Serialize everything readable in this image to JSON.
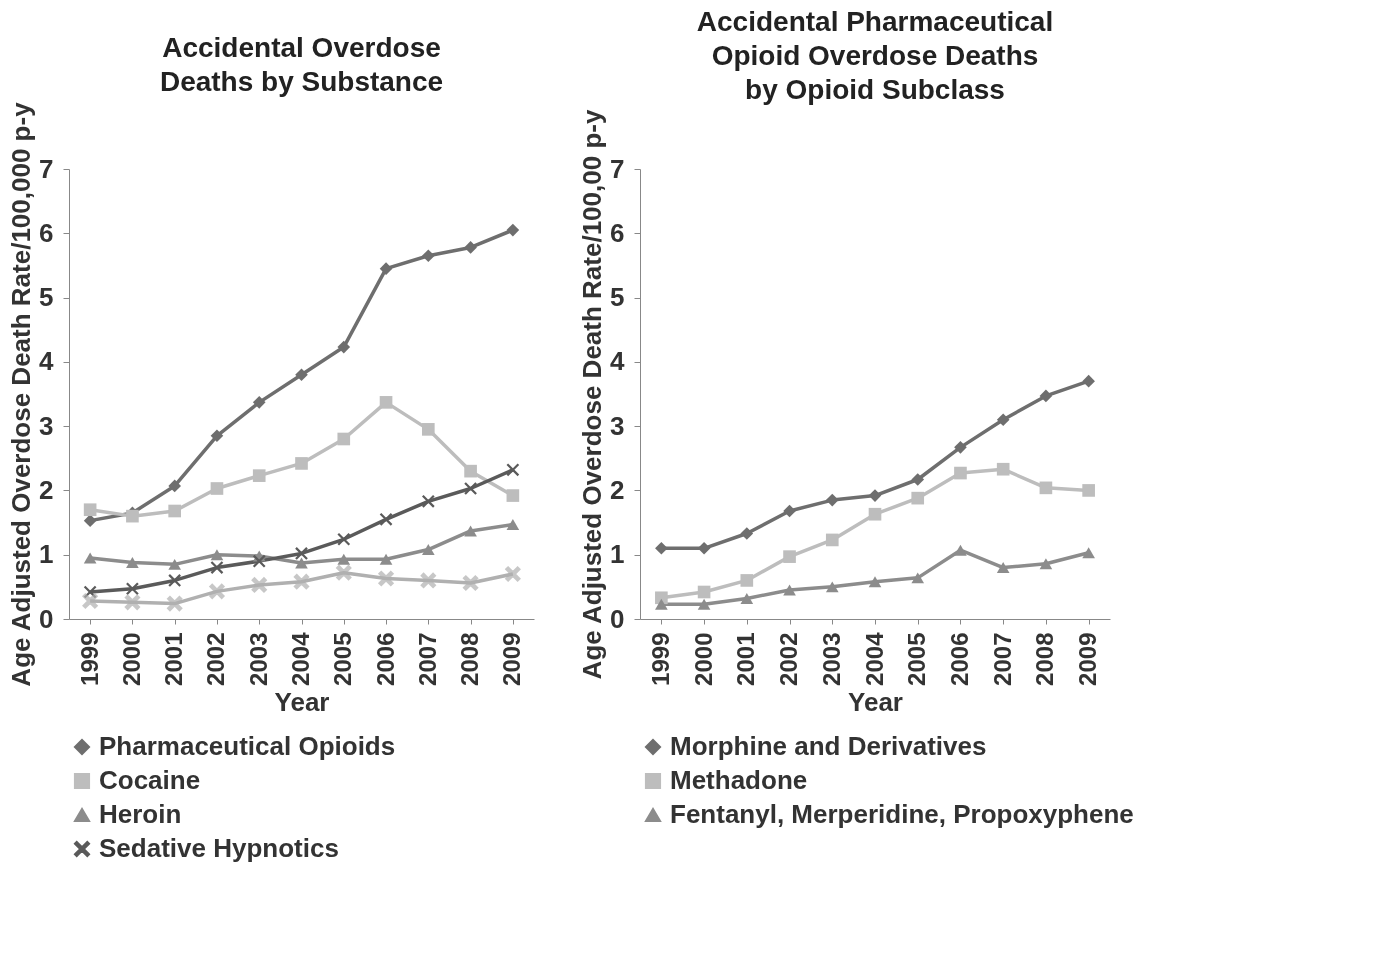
{
  "chart_data": [
    {
      "type": "line",
      "title": "Accidental Overdose\nDeaths by Substance",
      "xlabel": "Year",
      "ylabel": "Age Adjusted Overdose Death Rate/100,000 p-y",
      "categories": [
        "1999",
        "2000",
        "2001",
        "2002",
        "2003",
        "2004",
        "2005",
        "2006",
        "2007",
        "2008",
        "2009"
      ],
      "ylim": [
        0,
        7
      ],
      "yticks": [
        0,
        1,
        2,
        3,
        4,
        5,
        6,
        7
      ],
      "legend": "bottom",
      "series": [
        {
          "name": "Pharmaceutical Opioids",
          "color": "#6e6e6e",
          "marker": "diamond",
          "values": [
            1.53,
            1.65,
            2.07,
            2.85,
            3.37,
            3.8,
            4.23,
            5.45,
            5.65,
            5.78,
            6.05
          ]
        },
        {
          "name": "Cocaine",
          "color": "#bdbdbd",
          "marker": "square",
          "values": [
            1.7,
            1.6,
            1.68,
            2.03,
            2.23,
            2.42,
            2.8,
            3.37,
            2.95,
            2.3,
            1.92
          ]
        },
        {
          "name": "Heroin",
          "color": "#8c8c8c",
          "marker": "triangle",
          "values": [
            0.95,
            0.88,
            0.85,
            1.0,
            0.98,
            0.87,
            0.93,
            0.93,
            1.08,
            1.37,
            1.47
          ]
        },
        {
          "name": "Sedative Hypnotics",
          "color": "#5a5a5a",
          "marker": "cross",
          "values": [
            0.42,
            0.47,
            0.6,
            0.8,
            0.9,
            1.02,
            1.24,
            1.55,
            1.83,
            2.03,
            2.32
          ]
        },
        {
          "color": "#b0b0b0",
          "marker": "cross",
          "values": [
            0.28,
            0.26,
            0.24,
            0.43,
            0.53,
            0.58,
            0.72,
            0.63,
            0.6,
            0.56,
            0.7
          ]
        }
      ]
    },
    {
      "type": "line",
      "title": "Accidental Pharmaceutical\nOpioid Overdose Deaths\nby Opioid Subclass",
      "xlabel": "Year",
      "ylabel": "Age Adjusted Overdose Death Rate/100,00 p-y",
      "categories": [
        "1999",
        "2000",
        "2001",
        "2002",
        "2003",
        "2004",
        "2005",
        "2006",
        "2007",
        "2008",
        "2009"
      ],
      "ylim": [
        0,
        7
      ],
      "yticks": [
        0,
        1,
        2,
        3,
        4,
        5,
        6,
        7
      ],
      "legend": "bottom",
      "series": [
        {
          "name": "Morphine and Derivatives",
          "color": "#6e6e6e",
          "marker": "diamond",
          "values": [
            1.1,
            1.1,
            1.33,
            1.68,
            1.85,
            1.92,
            2.17,
            2.67,
            3.1,
            3.47,
            3.7
          ]
        },
        {
          "name": "Methadone",
          "color": "#bdbdbd",
          "marker": "square",
          "values": [
            0.33,
            0.42,
            0.6,
            0.97,
            1.23,
            1.63,
            1.88,
            2.27,
            2.33,
            2.04,
            2.0
          ]
        },
        {
          "name": "Fentanyl, Merperidine, Propoxyphene",
          "color": "#8c8c8c",
          "marker": "triangle",
          "values": [
            0.23,
            0.23,
            0.32,
            0.45,
            0.5,
            0.58,
            0.64,
            1.07,
            0.8,
            0.86,
            1.03
          ]
        }
      ]
    }
  ]
}
